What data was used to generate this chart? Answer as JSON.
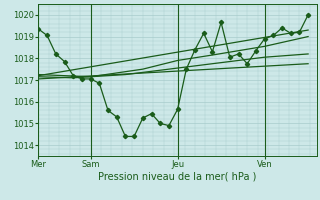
{
  "bg_color": "#cde8e8",
  "grid_color": "#a8cccc",
  "line_color": "#1a5c1a",
  "xlabel": "Pression niveau de la mer( hPa )",
  "ylim": [
    1013.5,
    1020.5
  ],
  "yticks": [
    1014,
    1015,
    1016,
    1017,
    1018,
    1019,
    1020
  ],
  "day_labels": [
    "Mer",
    "Sam",
    "Jeu",
    "Ven"
  ],
  "day_positions": [
    0,
    3,
    8,
    13
  ],
  "vline_x": [
    0,
    3,
    8,
    13
  ],
  "xlim": [
    0,
    16
  ],
  "main_x": [
    0,
    0.5,
    1.0,
    1.5,
    2.0,
    2.5,
    3.0,
    3.5,
    4.0,
    4.5,
    5.0,
    5.5,
    6.0,
    6.5,
    7.0,
    7.5,
    8.0,
    8.5,
    9.0,
    9.5,
    10.0,
    10.5,
    11.0,
    11.5,
    12.0,
    12.5,
    13.0,
    13.5,
    14.0,
    14.5,
    15.0,
    15.5
  ],
  "main_y": [
    1019.35,
    1019.05,
    1018.2,
    1017.85,
    1017.2,
    1017.05,
    1017.05,
    1016.85,
    1015.6,
    1015.3,
    1014.4,
    1014.4,
    1015.25,
    1015.45,
    1015.0,
    1014.9,
    1015.65,
    1017.5,
    1018.4,
    1019.15,
    1018.3,
    1019.65,
    1018.05,
    1018.2,
    1017.75,
    1018.35,
    1018.9,
    1019.05,
    1019.4,
    1019.15,
    1019.2,
    1020.0
  ],
  "trend1_x": [
    0,
    15.5
  ],
  "trend1_y": [
    1017.05,
    1017.75
  ],
  "trend2_x": [
    0,
    15.5
  ],
  "trend2_y": [
    1017.2,
    1019.3
  ],
  "curve1_x": [
    0,
    2,
    5,
    8,
    11,
    13,
    15.5
  ],
  "curve1_y": [
    1017.15,
    1017.1,
    1017.25,
    1017.55,
    1017.85,
    1018.05,
    1018.2
  ],
  "curve2_x": [
    0,
    3,
    6,
    8,
    10,
    13,
    15.5
  ],
  "curve2_y": [
    1017.25,
    1017.15,
    1017.5,
    1017.9,
    1018.15,
    1018.55,
    1019.0
  ]
}
